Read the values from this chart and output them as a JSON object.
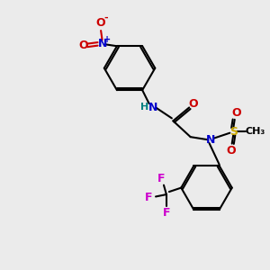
{
  "bg_color": "#ebebeb",
  "black": "#000000",
  "blue": "#0000cc",
  "red": "#cc0000",
  "yellow_s": "#ccaa00",
  "magenta": "#cc00cc",
  "teal": "#008080",
  "lw": 1.5,
  "ring_r": 0.95,
  "xlim": [
    0,
    10
  ],
  "ylim": [
    0,
    10
  ]
}
